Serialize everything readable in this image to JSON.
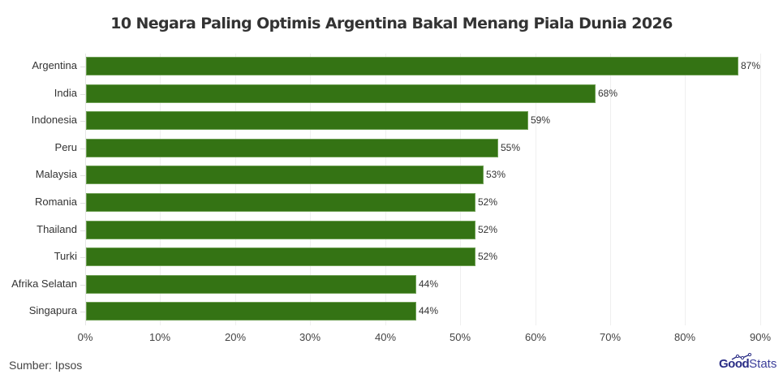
{
  "header": {
    "title": "10 Negara Paling Optimis Argentina Bakal Menang Piala Dunia 2026"
  },
  "footer": {
    "source": "Sumber: Ipsos",
    "logo_good": "Good",
    "logo_stats": "Stats"
  },
  "colors": {
    "bar_fill": "#347314",
    "bar_border": "#6fa055",
    "logo_primary": "#2a2d86"
  },
  "axis": {
    "ticks": [
      "0%",
      "10%",
      "20%",
      "30%",
      "40%",
      "50%",
      "60%",
      "70%",
      "80%",
      "90%"
    ]
  },
  "bars": [
    {
      "label": "Argentina",
      "value": 87,
      "display": "87%"
    },
    {
      "label": "India",
      "value": 68,
      "display": "68%"
    },
    {
      "label": "Indonesia",
      "value": 59,
      "display": "59%"
    },
    {
      "label": "Peru",
      "value": 55,
      "display": "55%"
    },
    {
      "label": "Malaysia",
      "value": 53,
      "display": "53%"
    },
    {
      "label": "Romania",
      "value": 52,
      "display": "52%"
    },
    {
      "label": "Thailand",
      "value": 52,
      "display": "52%"
    },
    {
      "label": "Turki",
      "value": 52,
      "display": "52%"
    },
    {
      "label": "Afrika Selatan",
      "value": 44,
      "display": "44%"
    },
    {
      "label": "Singapura",
      "value": 44,
      "display": "44%"
    }
  ],
  "chart_data": {
    "type": "bar",
    "orientation": "horizontal",
    "title": "10 Negara Paling Optimis Argentina Bakal Menang Piala Dunia 2026",
    "categories": [
      "Argentina",
      "India",
      "Indonesia",
      "Peru",
      "Malaysia",
      "Romania",
      "Thailand",
      "Turki",
      "Afrika Selatan",
      "Singapura"
    ],
    "values": [
      87,
      68,
      59,
      55,
      53,
      52,
      52,
      52,
      44,
      44
    ],
    "value_labels": [
      "87%",
      "68%",
      "59%",
      "55%",
      "53%",
      "52%",
      "52%",
      "52%",
      "44%",
      "44%"
    ],
    "xlabel": "",
    "ylabel": "",
    "xlim": [
      0,
      90
    ],
    "x_ticks": [
      "0%",
      "10%",
      "20%",
      "30%",
      "40%",
      "50%",
      "60%",
      "70%",
      "80%",
      "90%"
    ],
    "grid": "vertical light gridlines",
    "legend": "none",
    "source": "Sumber: Ipsos",
    "unit": "%"
  }
}
